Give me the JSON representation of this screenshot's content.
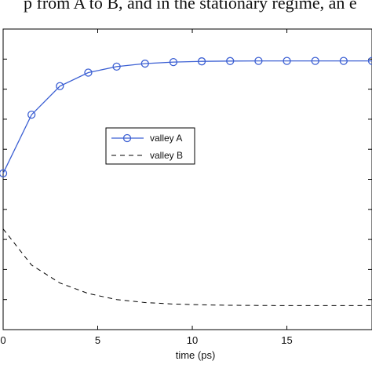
{
  "caption_fragment": "p from A to B, and in the stationary regime, an e",
  "chart_data": {
    "type": "line",
    "x": [
      0,
      1.5,
      3,
      4.5,
      6,
      7.5,
      9,
      10.5,
      12,
      13.5,
      15,
      16.5,
      18,
      19.5
    ],
    "series": [
      {
        "name": "valley A",
        "style": "solid-circle-markers",
        "color": "#3b5fd3",
        "values": [
          0.04,
          0.43,
          0.62,
          0.71,
          0.75,
          0.77,
          0.78,
          0.785,
          0.787,
          0.788,
          0.788,
          0.788,
          0.788,
          0.788
        ]
      },
      {
        "name": "valley B",
        "style": "dashed",
        "color": "#000000",
        "values": [
          -0.33,
          -0.57,
          -0.69,
          -0.76,
          -0.8,
          -0.82,
          -0.83,
          -0.835,
          -0.838,
          -0.839,
          -0.84,
          -0.84,
          -0.84,
          -0.84
        ]
      }
    ],
    "xticks": [
      "0",
      "5",
      "10",
      "15"
    ],
    "xtick_values": [
      0,
      5,
      10,
      15
    ],
    "xlabel": "time (ps)",
    "ylabel": "",
    "xlim": [
      0,
      19.5
    ],
    "ylim": [
      -1,
      1
    ],
    "y_major_ticks": [
      -0.8,
      -0.6,
      -0.4,
      -0.2,
      0,
      0.2,
      0.4,
      0.6,
      0.8
    ],
    "legend": {
      "entries": [
        "valley A",
        "valley B"
      ],
      "placement": "center-left"
    },
    "grid": false
  }
}
